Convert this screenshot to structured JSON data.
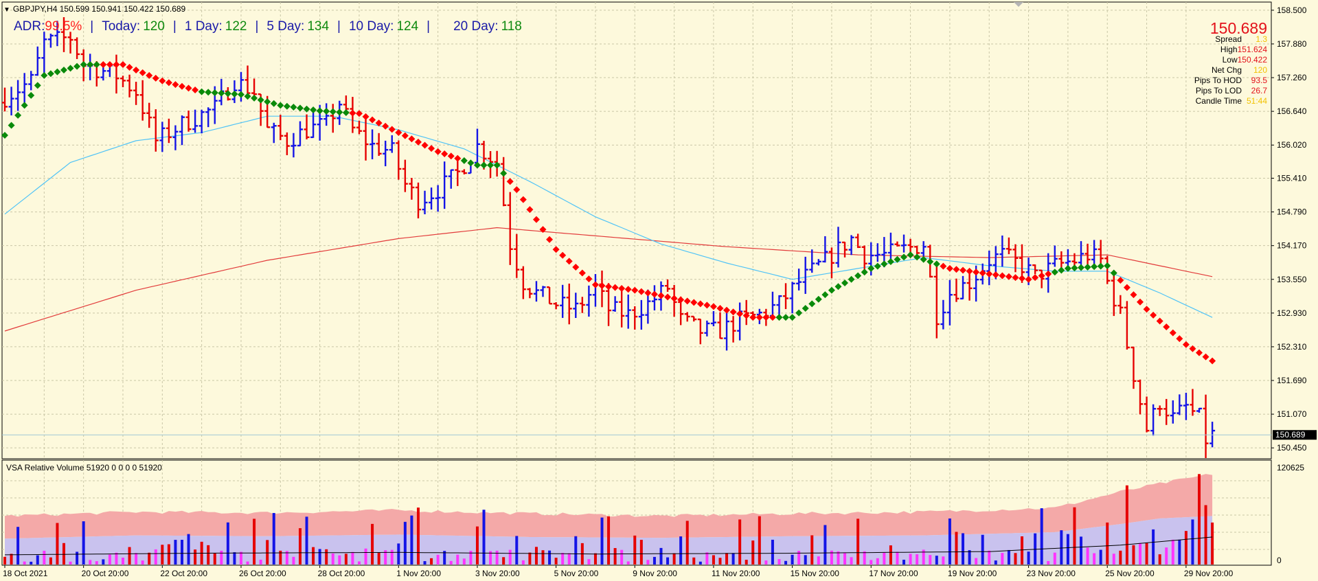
{
  "header": {
    "symbol_line": "GBPJPY,H4  150.599 150.941 150.422 150.689"
  },
  "adr": {
    "label": "ADR:",
    "pct": "99.5%",
    "sep": "|",
    "today_label": "Today:",
    "today": "120",
    "d1_label": "1 Day:",
    "d1": "122",
    "d5_label": "5 Day:",
    "d5": "134",
    "d10_label": "10 Day:",
    "d10": "124",
    "d20_label": "20 Day:",
    "d20": "118"
  },
  "info": {
    "price": "150.689",
    "spread_label": "Spread",
    "spread": "1.3",
    "high_label": "High",
    "high": "151.624",
    "low_label": "Low",
    "low": "150.422",
    "netchg_label": "Net Chg",
    "netchg": "120",
    "hod_label": "Pips To HOD",
    "hod": "93.5",
    "lod_label": "Pips To LOD",
    "lod": "26.7",
    "ct_label": "Candle Time",
    "ct": "51:44",
    "col_yellow": "#f2c200",
    "col_red": "#e3111a"
  },
  "volume_panel": {
    "title": "VSA Relative Volume 51920 0 0 0 0 51920",
    "scale_top": "120625",
    "scale_bottom": "0"
  },
  "colors": {
    "background": "#fdf9dc",
    "grid": "#c9c6a6",
    "bull_bar": "#1414e6",
    "bear_bar": "#e60000",
    "ma_up": "#0a8a0a",
    "ma_down": "#ff0000",
    "ma_long": "#e23a3a",
    "ma_mid": "#4fc3f7",
    "vol_pink": "#f4a9a8",
    "vol_lilac": "#c9c2ee",
    "vol_magenta": "#ff33ff"
  },
  "chart_data": [
    {
      "type": "candlestick",
      "instrument": "GBPJPY",
      "timeframe": "H4",
      "current_price": 150.689,
      "ylim": [
        150.25,
        158.65
      ],
      "y_ticks": [
        "158.500",
        "157.880",
        "157.260",
        "156.640",
        "156.020",
        "155.410",
        "154.790",
        "154.170",
        "153.550",
        "152.930",
        "152.310",
        "151.690",
        "151.070",
        "150.450"
      ],
      "x_tick_labels": [
        "18 Oct 2021",
        "20 Oct 20:00",
        "22 Oct 20:00",
        "26 Oct 20:00",
        "28 Oct 20:00",
        "1 Nov 20:00",
        "3 Nov 20:00",
        "5 Nov 20:00",
        "9 Nov 20:00",
        "11 Nov 20:00",
        "15 Nov 20:00",
        "17 Nov 20:00",
        "19 Nov 20:00",
        "23 Nov 20:00",
        "25 Nov 20:00",
        "29 Nov 20:00"
      ],
      "x_tick_bar_index": [
        0,
        12,
        24,
        36,
        48,
        60,
        72,
        84,
        96,
        108,
        120,
        132,
        144,
        156,
        168,
        180
      ],
      "bar_count": 185,
      "close_anchors": [
        [
          0,
          156.9
        ],
        [
          4,
          157.2
        ],
        [
          6,
          157.9
        ],
        [
          10,
          158.0
        ],
        [
          12,
          157.5
        ],
        [
          17,
          157.3
        ],
        [
          20,
          157.0
        ],
        [
          23,
          156.1
        ],
        [
          27,
          156.4
        ],
        [
          32,
          156.7
        ],
        [
          35,
          157.2
        ],
        [
          38,
          157.0
        ],
        [
          40,
          156.3
        ],
        [
          43,
          156.1
        ],
        [
          46,
          156.3
        ],
        [
          49,
          156.4
        ],
        [
          51,
          156.8
        ],
        [
          53,
          156.3
        ],
        [
          56,
          156.0
        ],
        [
          59,
          155.9
        ],
        [
          61,
          155.3
        ],
        [
          63,
          155.0
        ],
        [
          66,
          155.2
        ],
        [
          69,
          155.5
        ],
        [
          72,
          156.0
        ],
        [
          75,
          155.7
        ],
        [
          77,
          154.2
        ],
        [
          79,
          153.5
        ],
        [
          81,
          153.3
        ],
        [
          84,
          153.1
        ],
        [
          87,
          153.0
        ],
        [
          90,
          153.4
        ],
        [
          92,
          153.0
        ],
        [
          95,
          152.9
        ],
        [
          98,
          153.1
        ],
        [
          101,
          153.4
        ],
        [
          103,
          152.8
        ],
        [
          106,
          152.6
        ],
        [
          109,
          152.6
        ],
        [
          112,
          152.8
        ],
        [
          115,
          152.9
        ],
        [
          118,
          153.1
        ],
        [
          121,
          153.5
        ],
        [
          124,
          153.8
        ],
        [
          127,
          154.1
        ],
        [
          129,
          154.3
        ],
        [
          131,
          154.0
        ],
        [
          134,
          154.0
        ],
        [
          137,
          154.1
        ],
        [
          140,
          154.2
        ],
        [
          142,
          152.9
        ],
        [
          144,
          153.3
        ],
        [
          147,
          153.5
        ],
        [
          150,
          153.9
        ],
        [
          152,
          154.0
        ],
        [
          155,
          153.8
        ],
        [
          157,
          153.6
        ],
        [
          160,
          153.8
        ],
        [
          163,
          153.9
        ],
        [
          165,
          154.0
        ],
        [
          167,
          153.9
        ],
        [
          168,
          153.5
        ],
        [
          170,
          152.9
        ],
        [
          172,
          151.8
        ],
        [
          174,
          150.8
        ],
        [
          176,
          151.3
        ],
        [
          178,
          151.0
        ],
        [
          180,
          151.2
        ],
        [
          182,
          151.0
        ],
        [
          183,
          150.6
        ],
        [
          184,
          150.689
        ]
      ],
      "ma_fast_stepped": [
        [
          0,
          156.2
        ],
        [
          6,
          157.3
        ],
        [
          12,
          157.5
        ],
        [
          18,
          157.5
        ],
        [
          24,
          157.2
        ],
        [
          30,
          157.0
        ],
        [
          36,
          156.95
        ],
        [
          42,
          156.75
        ],
        [
          48,
          156.65
        ],
        [
          54,
          156.6
        ],
        [
          60,
          156.25
        ],
        [
          66,
          155.9
        ],
        [
          72,
          155.65
        ],
        [
          75,
          155.65
        ],
        [
          78,
          155.2
        ],
        [
          84,
          154.1
        ],
        [
          90,
          153.45
        ],
        [
          96,
          153.35
        ],
        [
          102,
          153.2
        ],
        [
          108,
          153.05
        ],
        [
          114,
          152.85
        ],
        [
          120,
          152.85
        ],
        [
          126,
          153.35
        ],
        [
          132,
          153.75
        ],
        [
          138,
          154.0
        ],
        [
          144,
          153.75
        ],
        [
          150,
          153.65
        ],
        [
          156,
          153.55
        ],
        [
          162,
          153.75
        ],
        [
          168,
          153.8
        ],
        [
          174,
          153.0
        ],
        [
          180,
          152.35
        ],
        [
          184,
          152.05
        ]
      ],
      "ma_fast_up_segments": [
        [
          0,
          14
        ],
        [
          30,
          52
        ],
        [
          70,
          76
        ],
        [
          118,
          142
        ],
        [
          160,
          169
        ]
      ],
      "ma_mid": [
        [
          0,
          154.75
        ],
        [
          10,
          155.7
        ],
        [
          20,
          156.1
        ],
        [
          30,
          156.25
        ],
        [
          40,
          156.55
        ],
        [
          50,
          156.55
        ],
        [
          60,
          156.3
        ],
        [
          70,
          155.95
        ],
        [
          80,
          155.35
        ],
        [
          90,
          154.7
        ],
        [
          100,
          154.2
        ],
        [
          110,
          153.85
        ],
        [
          120,
          153.55
        ],
        [
          130,
          153.75
        ],
        [
          140,
          153.95
        ],
        [
          150,
          153.8
        ],
        [
          160,
          153.7
        ],
        [
          168,
          153.7
        ],
        [
          176,
          153.3
        ],
        [
          184,
          152.85
        ]
      ],
      "ma_long": [
        [
          0,
          152.6
        ],
        [
          20,
          153.35
        ],
        [
          40,
          153.9
        ],
        [
          60,
          154.3
        ],
        [
          75,
          154.5
        ],
        [
          90,
          154.35
        ],
        [
          110,
          154.15
        ],
        [
          130,
          154.0
        ],
        [
          150,
          153.95
        ],
        [
          168,
          154.0
        ],
        [
          176,
          153.8
        ],
        [
          184,
          153.6
        ]
      ]
    },
    {
      "type": "bar",
      "title": "VSA Relative Volume 51920 0 0 0 0 51920",
      "ylim": [
        0,
        120625
      ],
      "x_tick_labels": [
        "18 Oct 2021",
        "20 Oct 20:00",
        "22 Oct 20:00",
        "26 Oct 20:00",
        "28 Oct 20:00",
        "1 Nov 20:00",
        "3 Nov 20:00",
        "5 Nov 20:00",
        "9 Nov 20:00",
        "11 Nov 20:00",
        "15 Nov 20:00",
        "17 Nov 20:00",
        "19 Nov 20:00",
        "23 Nov 20:00",
        "25 Nov 20:00",
        "29 Nov 20:00"
      ],
      "bar_count": 185,
      "volume_band_upper": [
        [
          0,
          60000
        ],
        [
          20,
          65000
        ],
        [
          40,
          64000
        ],
        [
          60,
          67000
        ],
        [
          80,
          63000
        ],
        [
          100,
          60000
        ],
        [
          120,
          63000
        ],
        [
          140,
          65000
        ],
        [
          160,
          70000
        ],
        [
          170,
          90000
        ],
        [
          176,
          100000
        ],
        [
          184,
          112000
        ]
      ],
      "volume_band_lower": [
        [
          0,
          32000
        ],
        [
          20,
          36000
        ],
        [
          40,
          35000
        ],
        [
          60,
          37000
        ],
        [
          80,
          34000
        ],
        [
          100,
          33000
        ],
        [
          120,
          35000
        ],
        [
          140,
          36000
        ],
        [
          160,
          40000
        ],
        [
          170,
          50000
        ],
        [
          176,
          57000
        ],
        [
          184,
          60000
        ]
      ],
      "volume_average": [
        [
          0,
          12000
        ],
        [
          30,
          14000
        ],
        [
          60,
          15000
        ],
        [
          90,
          13000
        ],
        [
          120,
          14000
        ],
        [
          150,
          16000
        ],
        [
          170,
          24000
        ],
        [
          184,
          34000
        ]
      ],
      "last_volume": 51920
    }
  ]
}
